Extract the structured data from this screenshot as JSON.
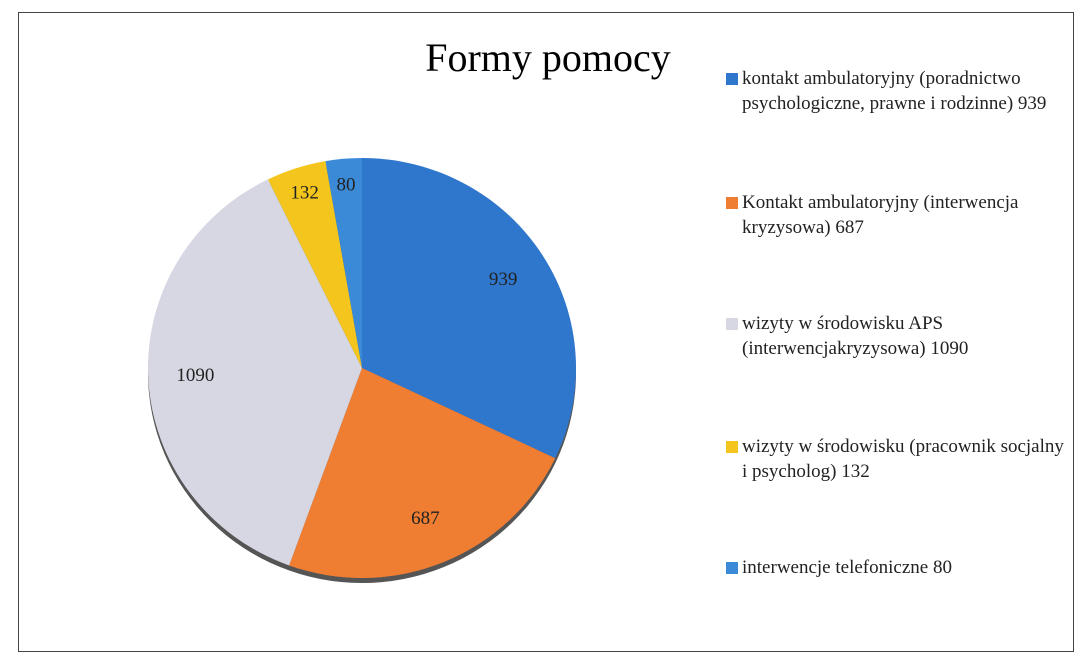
{
  "chart_data": {
    "type": "pie",
    "title": "Formy pomocy",
    "categories": [
      "kontakt ambulatoryjny (poradnictwo psychologiczne, prawne i rodzinne) 939",
      "Kontakt ambulatoryjny (interwencja kryzysowa) 687",
      "wizyty w środowisku APS (interwencjakryzysowa) 1090",
      "wizyty w środowisku (pracownik socjalny i psycholog) 132",
      "interwencje telefoniczne 80"
    ],
    "values": [
      939,
      687,
      1090,
      132,
      80
    ],
    "colors": [
      "#2f77cc",
      "#ef7d32",
      "#d6d7e2",
      "#f4c51c",
      "#3a8ad8"
    ]
  }
}
